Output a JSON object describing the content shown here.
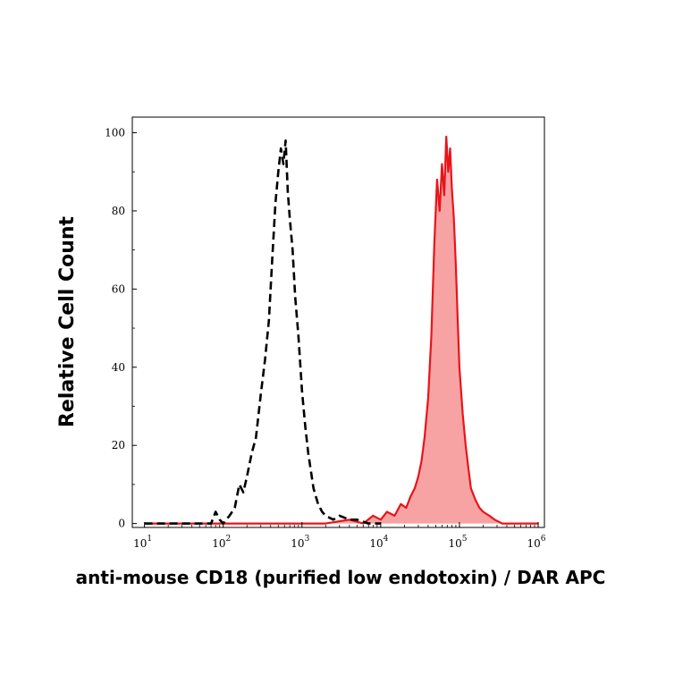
{
  "chart_data": {
    "type": "area",
    "xlabel": "anti-mouse CD18 (purified low endotoxin) / DAR APC",
    "ylabel": "Relative Cell Count",
    "x_scale": "log",
    "xlim": [
      7,
      1200000
    ],
    "ylim": [
      -1,
      104
    ],
    "x_ticks": [
      {
        "value": 10,
        "base": "10",
        "exp": "1"
      },
      {
        "value": 100,
        "base": "10",
        "exp": "2"
      },
      {
        "value": 1000,
        "base": "10",
        "exp": "3"
      },
      {
        "value": 10000,
        "base": "10",
        "exp": "4"
      },
      {
        "value": 100000,
        "base": "10",
        "exp": "5"
      },
      {
        "value": 1000000,
        "base": "10",
        "exp": "6"
      }
    ],
    "y_ticks": [
      {
        "value": 0,
        "label": "0"
      },
      {
        "value": 20,
        "label": "20"
      },
      {
        "value": 40,
        "label": "40"
      },
      {
        "value": 60,
        "label": "60"
      },
      {
        "value": 80,
        "label": "80"
      },
      {
        "value": 100,
        "label": "100"
      }
    ],
    "grid": false,
    "series": [
      {
        "style": "dashed-outline",
        "color": "#000000",
        "x": [
          10,
          50,
          70,
          80,
          90,
          100,
          120,
          140,
          160,
          180,
          200,
          230,
          260,
          300,
          340,
          380,
          420,
          460,
          500,
          540,
          580,
          620,
          660,
          700,
          760,
          820,
          900,
          1000,
          1100,
          1200,
          1400,
          1600,
          1800,
          2000,
          2500,
          3000,
          4000,
          5000,
          7000,
          10000
        ],
        "y": [
          0,
          0,
          0,
          3,
          1,
          0,
          2,
          4,
          10,
          8,
          12,
          18,
          22,
          33,
          42,
          52,
          68,
          82,
          90,
          96,
          92,
          98,
          85,
          78,
          70,
          58,
          48,
          34,
          25,
          18,
          9,
          5,
          3,
          2,
          1,
          2,
          1,
          1,
          0,
          0
        ]
      },
      {
        "style": "filled",
        "color": "#e8141a",
        "fill": "#f7a3a3",
        "x": [
          10,
          2000,
          4000,
          6000,
          8000,
          10000,
          12000,
          15000,
          18000,
          21000,
          24000,
          27000,
          30000,
          33000,
          36000,
          40000,
          44000,
          48000,
          52000,
          56000,
          60000,
          64000,
          68000,
          72000,
          76000,
          80000,
          85000,
          90000,
          95000,
          100000,
          110000,
          120000,
          130000,
          140000,
          160000,
          180000,
          200000,
          240000,
          280000,
          350000,
          500000,
          1000000
        ],
        "y": [
          0,
          0,
          1,
          0,
          2,
          1,
          3,
          2,
          5,
          4,
          7,
          9,
          12,
          16,
          22,
          32,
          48,
          72,
          88,
          80,
          92,
          84,
          99,
          90,
          96,
          86,
          78,
          66,
          52,
          40,
          28,
          20,
          14,
          9,
          6,
          4,
          3,
          2,
          1,
          0,
          0,
          0
        ]
      }
    ]
  }
}
